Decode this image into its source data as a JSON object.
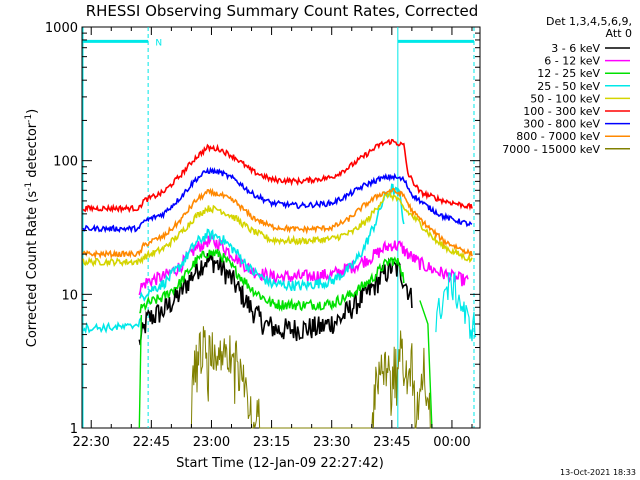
{
  "chart_data": {
    "type": "line",
    "title": "RHESSI Observing Summary Count Rates, Corrected",
    "xlabel": "Start Time (12-Jan-09 22:27:42)",
    "ylabel_parts": [
      "Corrected Count Rate (s",
      "-1",
      " detector",
      "-1",
      ")"
    ],
    "yscale": "log",
    "ylim": [
      1,
      1000
    ],
    "xlim_minutes_after_2230": [
      -2.3,
      97
    ],
    "x_ticks": [
      {
        "label": "22:30",
        "min": 0
      },
      {
        "label": "22:45",
        "min": 15
      },
      {
        "label": "23:00",
        "min": 30
      },
      {
        "label": "23:15",
        "min": 45
      },
      {
        "label": "23:30",
        "min": 60
      },
      {
        "label": "23:45",
        "min": 75
      },
      {
        "label": "00:00",
        "min": 90
      }
    ],
    "y_ticks": [
      {
        "label": "1",
        "value": 1
      },
      {
        "label": "10",
        "value": 10
      },
      {
        "label": "100",
        "value": 100
      },
      {
        "label": "1000",
        "value": 1000
      }
    ],
    "legend": {
      "position": "right",
      "header": [
        "Det 1,3,4,5,6,9,",
        "Att 0"
      ],
      "entries": [
        {
          "label": "3 - 6 keV",
          "color": "#000000"
        },
        {
          "label": "6 - 12 keV",
          "color": "#ff00ff"
        },
        {
          "label": "12 - 25 keV",
          "color": "#00e000"
        },
        {
          "label": "25 - 50 keV",
          "color": "#00e8e8"
        },
        {
          "label": "50 - 100 keV",
          "color": "#d4d400"
        },
        {
          "label": "100 - 300 keV",
          "color": "#ff0000"
        },
        {
          "label": "300 - 800 keV",
          "color": "#0000ff"
        },
        {
          "label": "800 - 7000 keV",
          "color": "#ff8800"
        },
        {
          "label": "7000 - 15000 keV",
          "color": "#808000"
        }
      ]
    },
    "annotations": [
      {
        "text": "N",
        "color": "#00e8e8"
      }
    ],
    "timestamp": "13-Oct-2021 18:33",
    "series": [
      {
        "band": "3 - 6 keV",
        "color": "#000000",
        "noise": 0.09,
        "points": [
          [
            12,
            4.3
          ],
          [
            14,
            6.5
          ],
          [
            18,
            7.5
          ],
          [
            22,
            10
          ],
          [
            26,
            15
          ],
          [
            28.5,
            18
          ],
          [
            31,
            17.5
          ],
          [
            35,
            13
          ],
          [
            39,
            8.5
          ],
          [
            43,
            6
          ],
          [
            47,
            5.4
          ],
          [
            52,
            5.5
          ],
          [
            57,
            5.6
          ],
          [
            62,
            6.5
          ],
          [
            66,
            8.5
          ],
          [
            70,
            11
          ],
          [
            73,
            14
          ],
          [
            75,
            16
          ],
          [
            77,
            15
          ],
          [
            78.5,
            12
          ],
          [
            80,
            9
          ]
        ]
      },
      {
        "band": "6 - 12 keV",
        "color": "#ff00ff",
        "noise": 0.05,
        "points": [
          [
            12,
            11
          ],
          [
            14,
            12.5
          ],
          [
            18,
            13.5
          ],
          [
            22,
            16
          ],
          [
            26,
            22
          ],
          [
            29,
            25
          ],
          [
            32,
            24
          ],
          [
            36,
            19
          ],
          [
            40,
            15
          ],
          [
            45,
            13.5
          ],
          [
            52,
            13.5
          ],
          [
            60,
            14
          ],
          [
            65,
            16
          ],
          [
            70,
            19
          ],
          [
            73,
            22
          ],
          [
            75,
            23.5
          ],
          [
            77,
            23
          ],
          [
            79,
            20
          ],
          [
            82,
            17
          ],
          [
            86,
            15
          ],
          [
            90,
            13.5
          ],
          [
            94,
            12.5
          ]
        ]
      },
      {
        "band": "12 - 25 keV",
        "color": "#00e000",
        "noise": 0.04,
        "points": [
          [
            12,
            7.5
          ],
          [
            14,
            8.5
          ],
          [
            18,
            9.5
          ],
          [
            22,
            12
          ],
          [
            26,
            17.5
          ],
          [
            29,
            20.5
          ],
          [
            32,
            20
          ],
          [
            36,
            15
          ],
          [
            40,
            11
          ],
          [
            45,
            8.5
          ],
          [
            52,
            8.3
          ],
          [
            60,
            8.5
          ],
          [
            65,
            10
          ],
          [
            70,
            13
          ],
          [
            73,
            16.5
          ],
          [
            75,
            18
          ],
          [
            77,
            17
          ],
          [
            78,
            13
          ]
        ]
      },
      {
        "band": "25 - 50 keV",
        "color": "#00e8e8",
        "noise": 0.04,
        "points": [
          [
            12,
            9
          ],
          [
            14,
            10.5
          ],
          [
            18,
            12
          ],
          [
            22,
            16
          ],
          [
            26,
            24
          ],
          [
            29,
            28
          ],
          [
            32,
            27
          ],
          [
            36,
            21
          ],
          [
            40,
            15
          ],
          [
            45,
            12
          ],
          [
            52,
            11.5
          ],
          [
            60,
            12.5
          ],
          [
            65,
            16
          ],
          [
            68,
            22
          ],
          [
            71,
            35
          ],
          [
            73,
            52
          ],
          [
            75,
            62
          ],
          [
            77,
            55
          ],
          [
            78,
            35
          ]
        ]
      },
      {
        "band": "50 - 100 keV",
        "color": "#d4d400",
        "noise": 0.025,
        "points": [
          [
            -2,
            17.5
          ],
          [
            12,
            17.5
          ],
          [
            13,
            19
          ],
          [
            15,
            20
          ],
          [
            18,
            22
          ],
          [
            22,
            28
          ],
          [
            26,
            38
          ],
          [
            29,
            44
          ],
          [
            32,
            43
          ],
          [
            36,
            37
          ],
          [
            40,
            30
          ],
          [
            45,
            25.5
          ],
          [
            52,
            25
          ],
          [
            60,
            26
          ],
          [
            65,
            29
          ],
          [
            69,
            36
          ],
          [
            72,
            48
          ],
          [
            74,
            56
          ],
          [
            76,
            53
          ],
          [
            78,
            44
          ],
          [
            82,
            34
          ],
          [
            86,
            25
          ],
          [
            90,
            21
          ],
          [
            95,
            18
          ]
        ]
      },
      {
        "band": "100 - 300 keV",
        "color": "#ff0000",
        "noise": 0.02,
        "points": [
          [
            -2,
            44
          ],
          [
            12,
            44
          ],
          [
            13,
            50
          ],
          [
            15,
            53
          ],
          [
            18,
            58
          ],
          [
            22,
            76
          ],
          [
            26,
            105
          ],
          [
            29,
            125
          ],
          [
            32,
            122
          ],
          [
            36,
            105
          ],
          [
            40,
            84
          ],
          [
            45,
            72
          ],
          [
            52,
            70
          ],
          [
            60,
            75
          ],
          [
            64,
            88
          ],
          [
            68,
            108
          ],
          [
            72,
            132
          ],
          [
            75,
            140
          ],
          [
            78,
            130
          ],
          [
            79,
            80
          ],
          [
            82,
            58
          ],
          [
            88,
            50
          ],
          [
            95,
            45
          ]
        ]
      },
      {
        "band": "300 - 800 keV",
        "color": "#0000ff",
        "noise": 0.02,
        "points": [
          [
            -2,
            31
          ],
          [
            12,
            31
          ],
          [
            13,
            35
          ],
          [
            15,
            37
          ],
          [
            18,
            40
          ],
          [
            22,
            52
          ],
          [
            26,
            72
          ],
          [
            29,
            84
          ],
          [
            32,
            82
          ],
          [
            36,
            72
          ],
          [
            40,
            57
          ],
          [
            45,
            48
          ],
          [
            52,
            46
          ],
          [
            60,
            48
          ],
          [
            64,
            55
          ],
          [
            68,
            65
          ],
          [
            72,
            73
          ],
          [
            75,
            76
          ],
          [
            78,
            72
          ],
          [
            80,
            56
          ],
          [
            84,
            45
          ],
          [
            88,
            38
          ],
          [
            95,
            33
          ]
        ]
      },
      {
        "band": "800 - 7000 keV",
        "color": "#ff8800",
        "noise": 0.02,
        "points": [
          [
            -2,
            20
          ],
          [
            12,
            20
          ],
          [
            13,
            23
          ],
          [
            15,
            25
          ],
          [
            18,
            27
          ],
          [
            22,
            35
          ],
          [
            26,
            50
          ],
          [
            29,
            58
          ],
          [
            32,
            56
          ],
          [
            36,
            49
          ],
          [
            40,
            38
          ],
          [
            45,
            32
          ],
          [
            52,
            30.5
          ],
          [
            60,
            31.5
          ],
          [
            64,
            36
          ],
          [
            68,
            46
          ],
          [
            72,
            56
          ],
          [
            75,
            60
          ],
          [
            78,
            55
          ],
          [
            80,
            42
          ],
          [
            84,
            32
          ],
          [
            88,
            25
          ],
          [
            95,
            20
          ]
        ]
      },
      {
        "band": "7000 - 15000 keV",
        "color": "#808000",
        "noise": 0,
        "points": [
          [
            25,
            1
          ],
          [
            25,
            2.5
          ],
          [
            26,
            3
          ],
          [
            27,
            3.5
          ],
          [
            28,
            4
          ],
          [
            29,
            3.5
          ],
          [
            30,
            4
          ],
          [
            31,
            3
          ],
          [
            32,
            4
          ],
          [
            33,
            3.5
          ],
          [
            34,
            4
          ],
          [
            35,
            3
          ],
          [
            36,
            3.5
          ],
          [
            37,
            2.5
          ],
          [
            38,
            3
          ],
          [
            39,
            2
          ],
          [
            40,
            1
          ],
          [
            41,
            1.5
          ],
          [
            42,
            1
          ],
          [
            70,
            1
          ],
          [
            71,
            2
          ],
          [
            72,
            3.5
          ],
          [
            73,
            4
          ],
          [
            74,
            3.5
          ],
          [
            75,
            4
          ],
          [
            76,
            3
          ],
          [
            77,
            4
          ],
          [
            78,
            3.5
          ],
          [
            79,
            2
          ],
          [
            80,
            3
          ],
          [
            81,
            1
          ],
          [
            82,
            2
          ],
          [
            83,
            3
          ],
          [
            84,
            1.5
          ],
          [
            85,
            1
          ]
        ]
      }
    ],
    "saa_segment": {
      "band": "attenuator/SAA",
      "color": "#00e8e8",
      "points": [
        [
          -2,
          5.6
        ],
        [
          10,
          5.7
        ],
        [
          12,
          6.2
        ],
        [
          12.5,
          7
        ]
      ],
      "late_points": [
        [
          86,
          6
        ],
        [
          88,
          10
        ],
        [
          90,
          12
        ],
        [
          92,
          9
        ],
        [
          94,
          6
        ],
        [
          96,
          5.7
        ]
      ]
    }
  }
}
